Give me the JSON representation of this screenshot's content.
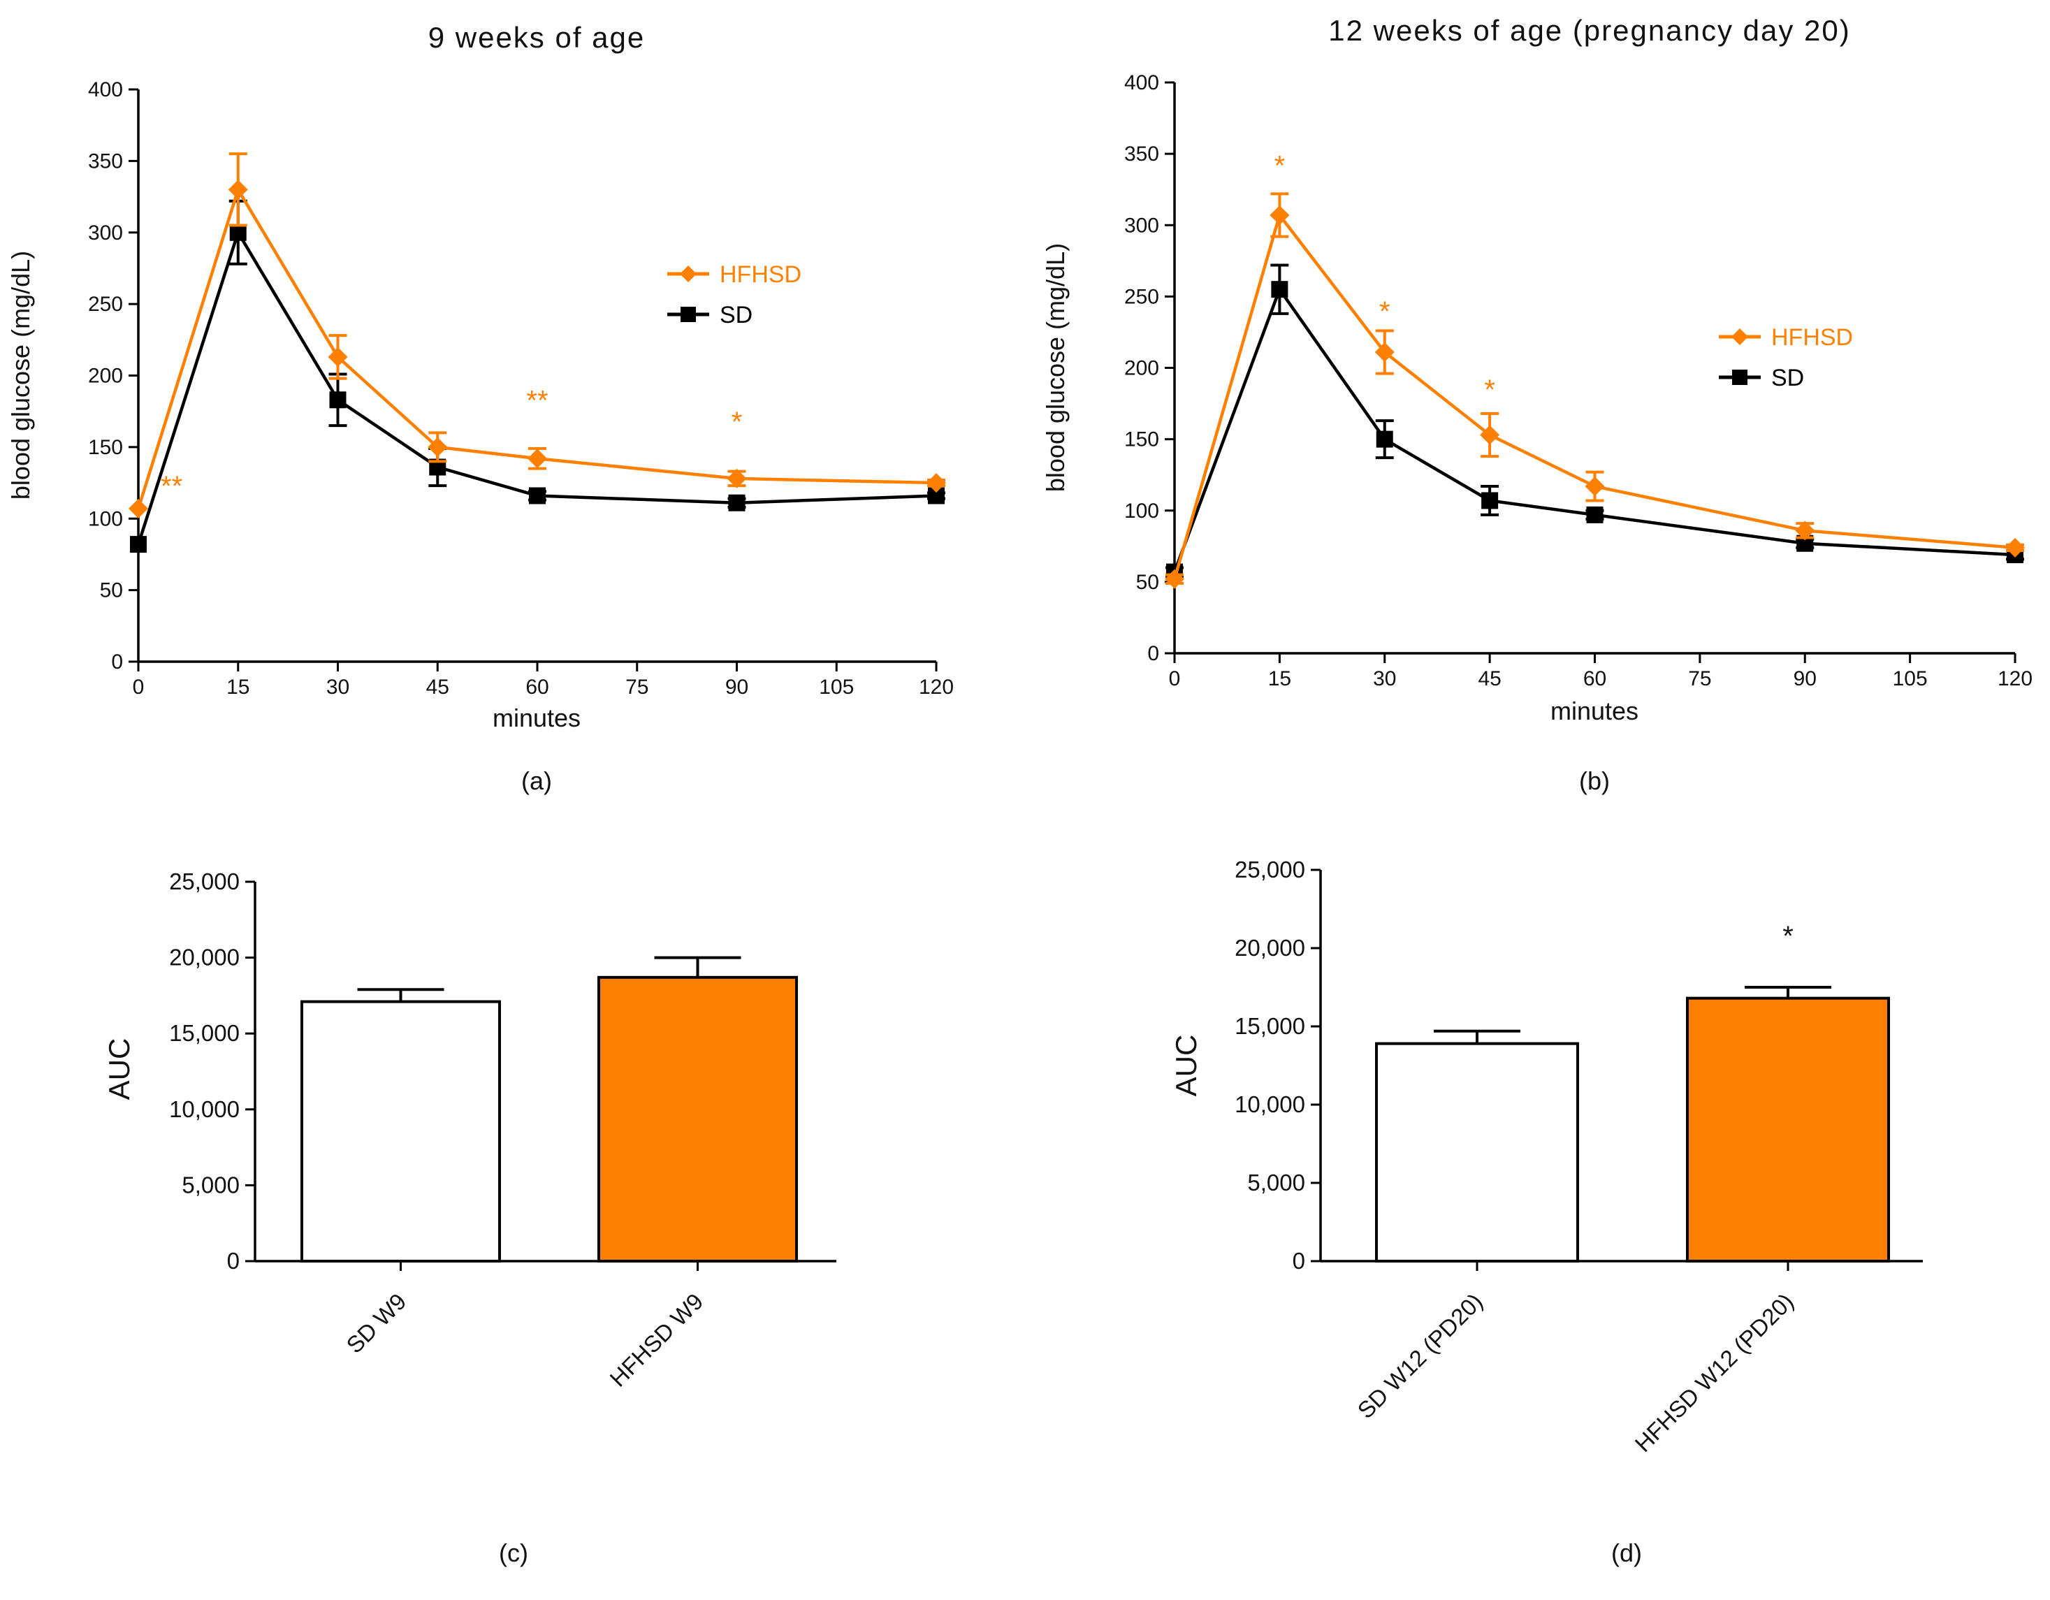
{
  "colors": {
    "hfhsd": "#ff8000",
    "sd": "#000000",
    "bar_sd_fill": "#ffffff",
    "bar_hfhsd_fill": "#ff8000"
  },
  "chart_data": [
    {
      "type": "line",
      "title": "9 weeks of age",
      "panel_label": "(a)",
      "xlabel": "minutes",
      "ylabel": "blood glucose (mg/dL)",
      "xlim": [
        0,
        120
      ],
      "ylim": [
        0,
        400
      ],
      "xticks": [
        "0",
        "15",
        "30",
        "45",
        "60",
        "75",
        "90",
        "105",
        "120"
      ],
      "yticks": [
        "0",
        "50",
        "100",
        "150",
        "200",
        "250",
        "300",
        "350",
        "400"
      ],
      "legend": [
        "HFHSD",
        "SD"
      ],
      "legend_position": "right",
      "series": [
        {
          "name": "HFHSD",
          "x": [
            0,
            15,
            30,
            45,
            60,
            90,
            120
          ],
          "values": [
            107,
            330,
            213,
            150,
            142,
            128,
            125
          ],
          "error": [
            0,
            25,
            15,
            10,
            7,
            5,
            2
          ]
        },
        {
          "name": "SD",
          "x": [
            0,
            15,
            30,
            45,
            60,
            90,
            120
          ],
          "values": [
            82,
            300,
            183,
            136,
            116,
            111,
            116
          ],
          "error": [
            0,
            22,
            18,
            13,
            3,
            3,
            2
          ]
        }
      ],
      "annotations": [
        {
          "text": "**",
          "x": 5,
          "y": 123
        },
        {
          "text": "**",
          "x": 60,
          "y": 183
        },
        {
          "text": "*",
          "x": 90,
          "y": 168
        }
      ]
    },
    {
      "type": "line",
      "title": "12 weeks of age (pregnancy day 20)",
      "panel_label": "(b)",
      "xlabel": "minutes",
      "ylabel": "blood glucose (mg/dL)",
      "xlim": [
        0,
        120
      ],
      "ylim": [
        0,
        400
      ],
      "xticks": [
        "0",
        "15",
        "30",
        "45",
        "60",
        "75",
        "90",
        "105",
        "120"
      ],
      "yticks": [
        "0",
        "50",
        "100",
        "150",
        "200",
        "250",
        "300",
        "350",
        "400"
      ],
      "legend": [
        "HFHSD",
        "SD"
      ],
      "legend_position": "right",
      "series": [
        {
          "name": "HFHSD",
          "x": [
            0,
            15,
            30,
            45,
            60,
            90,
            120
          ],
          "values": [
            52,
            307,
            211,
            153,
            117,
            86,
            74
          ],
          "error": [
            3,
            15,
            15,
            15,
            10,
            5,
            2
          ]
        },
        {
          "name": "SD",
          "x": [
            0,
            15,
            30,
            45,
            60,
            90,
            120
          ],
          "values": [
            57,
            255,
            150,
            107,
            97,
            77,
            69
          ],
          "error": [
            3,
            17,
            13,
            10,
            3,
            3,
            3
          ]
        }
      ],
      "annotations": [
        {
          "text": "*",
          "x": 15,
          "y": 342
        },
        {
          "text": "*",
          "x": 30,
          "y": 240
        },
        {
          "text": "*",
          "x": 45,
          "y": 185
        }
      ]
    },
    {
      "type": "bar",
      "panel_label": "(c)",
      "ylabel": "AUC",
      "ylim": [
        0,
        25000
      ],
      "yticks": [
        "0",
        "5,000",
        "10,000",
        "15,000",
        "20,000",
        "25,000"
      ],
      "categories": [
        "SD W9",
        "HFHSD W9"
      ],
      "values": [
        17100,
        18700
      ],
      "errors": [
        800,
        1300
      ],
      "annotations": []
    },
    {
      "type": "bar",
      "panel_label": "(d)",
      "ylabel": "AUC",
      "ylim": [
        0,
        25000
      ],
      "yticks": [
        "0",
        "5,000",
        "10,000",
        "15,000",
        "20,000",
        "25,000"
      ],
      "categories": [
        "SD W12 (PD20)",
        "HFHSD W12 (PD20)"
      ],
      "values": [
        13900,
        16800
      ],
      "errors": [
        800,
        700
      ],
      "annotations": [
        {
          "text": "*",
          "bar": 1
        }
      ]
    }
  ]
}
